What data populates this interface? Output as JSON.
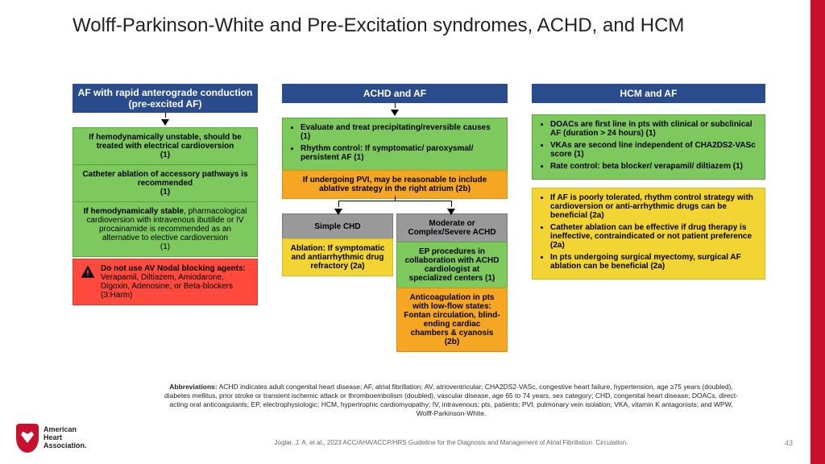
{
  "title": "Wolff-Parkinson-White and Pre-Excitation syndromes, ACHD, and HCM",
  "page_number": "43",
  "col1": {
    "header": "AF with rapid anterograde conduction (pre-excited AF)",
    "g1": "If hemodynamically unstable, should be treated with electrical cardioversion\n(1)",
    "g2": "Catheter ablation of accessory pathways is recommended\n(1)",
    "g3": "If hemodynamically stable, pharmacological cardioversion with intravenous ibutilide or IV procainamide is recommended as an alternative to elective cardioversion\n(1)",
    "red_label": "Do not use AV Nodal blocking agents:",
    "red_text": " Verapamil, Diltiazem, Amiodarone, Digoxin, Adenosine, or Beta-blockers (3:Harm)"
  },
  "col2": {
    "header": "ACHD and AF",
    "green_b1": "Evaluate and treat precipitating/reversible causes (1)",
    "green_b2": "Rhythm control: If symptomatic/ paroxysmal/ persistent AF (1)",
    "orange": "If undergoing PVI, may be reasonable to include ablative strategy in the right atrium (2b)",
    "simple_hdr": "Simple CHD",
    "simple_yellow": "Ablation: If symptomatic and antiarrhythmic drug refractory (2a)",
    "complex_hdr": "Moderate or Complex/Severe ACHD",
    "complex_green": "EP procedures in collaboration with ACHD cardiologist at specialized centers (1)",
    "complex_orange": "Anticoagulation in pts with low-flow states: Fontan circulation, blind-ending cardiac chambers & cyanosis (2b)"
  },
  "col3": {
    "header": "HCM  and AF",
    "g_b1": "DOACs are first line in pts with clinical or subclinical AF (duration > 24 hours) (1)",
    "g_b2": "VKAs are second line independent of CHA2DS2-VASc score (1)",
    "g_b3": "Rate control: beta blocker/ verapamil/ diltiazem (1)",
    "y_b1": "If AF is poorly tolerated, rhythm control strategy with cardioversion or anti-arrhythmic drugs can be beneficial (2a)",
    "y_b2": "Catheter ablation can be effective if drug therapy is ineffective, contraindicated or not patient preference (2a)",
    "y_b3": "In pts undergoing surgical myectomy, surgical AF ablation can be beneficial (2a)"
  },
  "abbrev_label": "Abbreviations:",
  "abbrev": " ACHD indicates adult congenital heart disease; AF, atrial fibrillation; AV, atrioventricular; CHA2DS2-VASc, congestive heart failure, hypertension, age ≥75 years (doubled), diabetes mellitus, prior stroke or transient ischemic attack or thromboembolism (doubled), vascular disease, age 65 to 74 years, sex category; CHD, congenital heart disease; DOACs, direct-acting oral anticoagulants; EP, electrophysiologic; HCM, hypertrophic cardiomyopathy; IV, intravenous; pts, patients; PVI, pulmonary vein isolation; VKA, vitamin K antagonists; and WPW, Wolff-Parkinson-White.",
  "citation": "Joglar, J. A. et al., 2023 ACC/AHA/ACCP/HRS Guideline for the Diagnosis and Management of Atrial Fibrillation. Circulation.",
  "logo_text": "American\nHeart\nAssociation.",
  "colors": {
    "header_bg": "#2b4c8c",
    "green": "#7dc95e",
    "yellow": "#f2d432",
    "orange": "#f5a623",
    "gray": "#999999",
    "red": "#ff4a3d",
    "brand_red": "#c8102e"
  }
}
